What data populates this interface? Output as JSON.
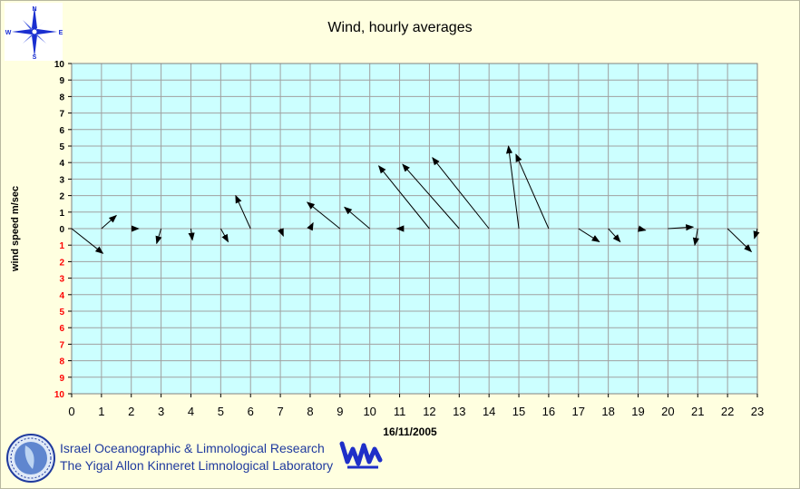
{
  "chart_data": {
    "type": "vector",
    "title": "Wind, hourly averages",
    "xlabel": "16/11/2005",
    "ylabel": "wind speed m/sec",
    "x_ticks": [
      "0",
      "1",
      "2",
      "3",
      "4",
      "5",
      "6",
      "7",
      "8",
      "9",
      "10",
      "11",
      "12",
      "13",
      "14",
      "15",
      "16",
      "17",
      "18",
      "19",
      "20",
      "21",
      "22",
      "23"
    ],
    "y_ticks": [
      {
        "value": 10,
        "label": "10"
      },
      {
        "value": 9,
        "label": "9"
      },
      {
        "value": 8,
        "label": "8"
      },
      {
        "value": 7,
        "label": "7"
      },
      {
        "value": 6,
        "label": "6"
      },
      {
        "value": 5,
        "label": "5"
      },
      {
        "value": 4,
        "label": "4"
      },
      {
        "value": 3,
        "label": "3"
      },
      {
        "value": 2,
        "label": "2"
      },
      {
        "value": 1,
        "label": "1"
      },
      {
        "value": 0,
        "label": "0"
      },
      {
        "value": -1,
        "label": "1"
      },
      {
        "value": -2,
        "label": "2"
      },
      {
        "value": -3,
        "label": "3"
      },
      {
        "value": -4,
        "label": "4"
      },
      {
        "value": -5,
        "label": "5"
      },
      {
        "value": -6,
        "label": "6"
      },
      {
        "value": -7,
        "label": "7"
      },
      {
        "value": -8,
        "label": "8"
      },
      {
        "value": -9,
        "label": "9"
      },
      {
        "value": -10,
        "label": "10"
      }
    ],
    "xlim": [
      0,
      23
    ],
    "ylim": [
      -10,
      10
    ],
    "grid": true,
    "colors": {
      "plot_background": "#ccffff",
      "grid": "#a0a0a0",
      "arrow": "#000000",
      "positive_tick": "#000000",
      "negative_tick": "#ff0000"
    },
    "vectors": [
      {
        "hour": 0,
        "u": 1.05,
        "v": -1.5
      },
      {
        "hour": 1,
        "u": 0.5,
        "v": 0.8
      },
      {
        "hour": 2,
        "u": 0.25,
        "v": 0.0
      },
      {
        "hour": 3,
        "u": -0.15,
        "v": -0.9
      },
      {
        "hour": 4,
        "u": 0.05,
        "v": -0.7
      },
      {
        "hour": 5,
        "u": 0.25,
        "v": -0.8
      },
      {
        "hour": 6,
        "u": -0.5,
        "v": 2.0
      },
      {
        "hour": 7,
        "u": 0.1,
        "v": -0.45
      },
      {
        "hour": 8,
        "u": 0.1,
        "v": 0.35
      },
      {
        "hour": 9,
        "u": -1.1,
        "v": 1.6
      },
      {
        "hour": 10,
        "u": -0.85,
        "v": 1.3
      },
      {
        "hour": 11,
        "u": -0.1,
        "v": 0.0
      },
      {
        "hour": 12,
        "u": -1.7,
        "v": 3.8
      },
      {
        "hour": 13,
        "u": -1.9,
        "v": 3.9
      },
      {
        "hour": 14,
        "u": -1.9,
        "v": 4.3
      },
      {
        "hour": 15,
        "u": -0.35,
        "v": 5.0
      },
      {
        "hour": 16,
        "u": -1.1,
        "v": 4.5
      },
      {
        "hour": 17,
        "u": 0.7,
        "v": -0.8
      },
      {
        "hour": 18,
        "u": 0.4,
        "v": -0.8
      },
      {
        "hour": 19,
        "u": 0.25,
        "v": -0.1
      },
      {
        "hour": 20,
        "u": 0.85,
        "v": 0.1
      },
      {
        "hour": 21,
        "u": -0.1,
        "v": -1.0
      },
      {
        "hour": 22,
        "u": 0.8,
        "v": -1.4
      },
      {
        "hour": 23,
        "u": -0.1,
        "v": -0.6
      }
    ]
  },
  "footer": {
    "line1": "Israel Oceanographic & Limnological Research",
    "line2": "The Yigal Allon Kinneret Limnological Laboratory"
  },
  "compass": {
    "icon": "compass-rose-icon",
    "n": "N",
    "e": "E",
    "s": "S",
    "w": "W",
    "color": "#1a2fd0"
  },
  "logos": {
    "left": "iolr-globe-logo-icon",
    "right": "kinneret-lab-logo-icon"
  }
}
